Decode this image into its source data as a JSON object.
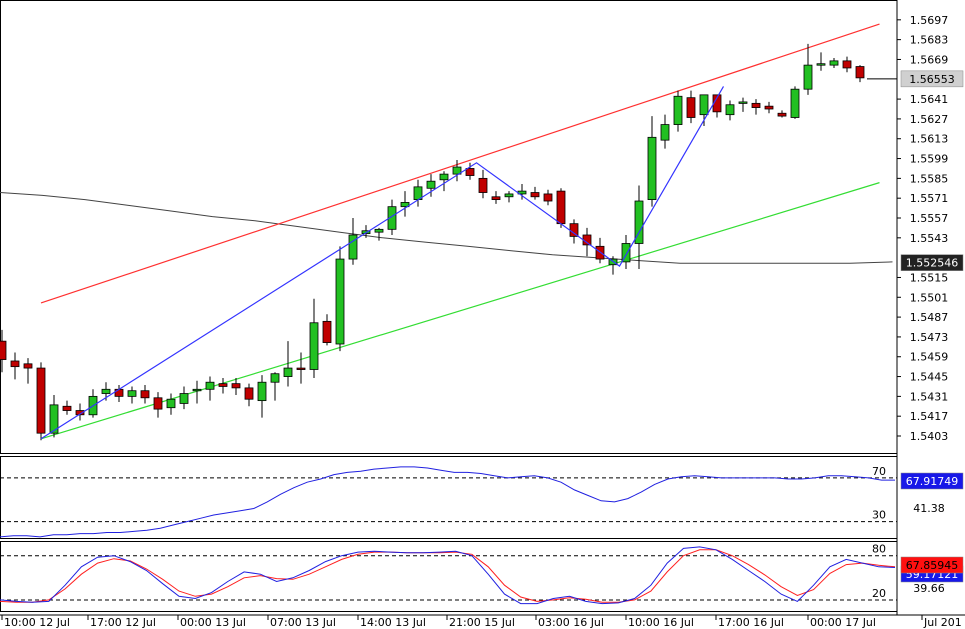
{
  "chart_data": {
    "type": "candlestick",
    "main": {
      "price_ticks": [
        "1.5697",
        "1.5683",
        "1.5669",
        "1.5641",
        "1.5627",
        "1.5613",
        "1.5599",
        "1.5585",
        "1.5571",
        "1.5557",
        "1.5543",
        "1.5515",
        "1.5501",
        "1.5487",
        "1.5473",
        "1.5459",
        "1.5445",
        "1.5431",
        "1.5417",
        "1.5403"
      ],
      "ylim": [
        1.5391,
        1.5711
      ],
      "current_price_label": "1.56553",
      "current_price": 1.56553,
      "ma_label": "1.552546",
      "ma_value": 1.552546,
      "candles": [
        {
          "o": 1.547,
          "h": 1.5478,
          "l": 1.5448,
          "c": 1.5457
        },
        {
          "o": 1.5456,
          "h": 1.5462,
          "l": 1.5443,
          "c": 1.5452
        },
        {
          "o": 1.5454,
          "h": 1.5458,
          "l": 1.544,
          "c": 1.5451
        },
        {
          "o": 1.5451,
          "h": 1.5455,
          "l": 1.54,
          "c": 1.5405
        },
        {
          "o": 1.5405,
          "h": 1.5432,
          "l": 1.5402,
          "c": 1.5425
        },
        {
          "o": 1.5424,
          "h": 1.5428,
          "l": 1.5418,
          "c": 1.5421
        },
        {
          "o": 1.5421,
          "h": 1.5426,
          "l": 1.5414,
          "c": 1.5418
        },
        {
          "o": 1.5418,
          "h": 1.5436,
          "l": 1.5416,
          "c": 1.5431
        },
        {
          "o": 1.5433,
          "h": 1.5441,
          "l": 1.5428,
          "c": 1.5436
        },
        {
          "o": 1.5436,
          "h": 1.5439,
          "l": 1.5427,
          "c": 1.5431
        },
        {
          "o": 1.5431,
          "h": 1.5438,
          "l": 1.5426,
          "c": 1.5435
        },
        {
          "o": 1.5435,
          "h": 1.5439,
          "l": 1.5426,
          "c": 1.543
        },
        {
          "o": 1.543,
          "h": 1.5434,
          "l": 1.5416,
          "c": 1.5422
        },
        {
          "o": 1.5423,
          "h": 1.5433,
          "l": 1.5418,
          "c": 1.5429
        },
        {
          "o": 1.5426,
          "h": 1.5438,
          "l": 1.5422,
          "c": 1.5433
        },
        {
          "o": 1.5435,
          "h": 1.5442,
          "l": 1.5426,
          "c": 1.5436
        },
        {
          "o": 1.5436,
          "h": 1.5445,
          "l": 1.5428,
          "c": 1.5441
        },
        {
          "o": 1.544,
          "h": 1.5444,
          "l": 1.5433,
          "c": 1.5438
        },
        {
          "o": 1.544,
          "h": 1.5444,
          "l": 1.5432,
          "c": 1.5437
        },
        {
          "o": 1.5437,
          "h": 1.544,
          "l": 1.5424,
          "c": 1.5429
        },
        {
          "o": 1.5428,
          "h": 1.5446,
          "l": 1.5416,
          "c": 1.5441
        },
        {
          "o": 1.5441,
          "h": 1.5448,
          "l": 1.5428,
          "c": 1.5447
        },
        {
          "o": 1.5445,
          "h": 1.547,
          "l": 1.5438,
          "c": 1.5451
        },
        {
          "o": 1.5451,
          "h": 1.5462,
          "l": 1.544,
          "c": 1.545
        },
        {
          "o": 1.545,
          "h": 1.55,
          "l": 1.5444,
          "c": 1.5483
        },
        {
          "o": 1.5484,
          "h": 1.5489,
          "l": 1.5467,
          "c": 1.5469
        },
        {
          "o": 1.5468,
          "h": 1.5537,
          "l": 1.5463,
          "c": 1.5528
        },
        {
          "o": 1.5528,
          "h": 1.5557,
          "l": 1.5524,
          "c": 1.5545
        },
        {
          "o": 1.5546,
          "h": 1.5552,
          "l": 1.5543,
          "c": 1.5548
        },
        {
          "o": 1.5547,
          "h": 1.555,
          "l": 1.5541,
          "c": 1.5549
        },
        {
          "o": 1.5549,
          "h": 1.557,
          "l": 1.5545,
          "c": 1.5565
        },
        {
          "o": 1.5565,
          "h": 1.5576,
          "l": 1.5558,
          "c": 1.5568
        },
        {
          "o": 1.557,
          "h": 1.5584,
          "l": 1.5565,
          "c": 1.5579
        },
        {
          "o": 1.5578,
          "h": 1.5588,
          "l": 1.5572,
          "c": 1.5583
        },
        {
          "o": 1.5584,
          "h": 1.559,
          "l": 1.5576,
          "c": 1.5588
        },
        {
          "o": 1.5588,
          "h": 1.5598,
          "l": 1.5583,
          "c": 1.5593
        },
        {
          "o": 1.5592,
          "h": 1.5596,
          "l": 1.5584,
          "c": 1.5587
        },
        {
          "o": 1.5585,
          "h": 1.5591,
          "l": 1.5571,
          "c": 1.5575
        },
        {
          "o": 1.5572,
          "h": 1.5576,
          "l": 1.5567,
          "c": 1.557
        },
        {
          "o": 1.5572,
          "h": 1.5576,
          "l": 1.5568,
          "c": 1.5574
        },
        {
          "o": 1.5574,
          "h": 1.5581,
          "l": 1.557,
          "c": 1.5576
        },
        {
          "o": 1.5575,
          "h": 1.5579,
          "l": 1.557,
          "c": 1.5572
        },
        {
          "o": 1.5574,
          "h": 1.5577,
          "l": 1.5566,
          "c": 1.5569
        },
        {
          "o": 1.5576,
          "h": 1.5578,
          "l": 1.555,
          "c": 1.5553
        },
        {
          "o": 1.5553,
          "h": 1.5556,
          "l": 1.5539,
          "c": 1.5544
        },
        {
          "o": 1.5545,
          "h": 1.555,
          "l": 1.553,
          "c": 1.5538
        },
        {
          "o": 1.5537,
          "h": 1.5543,
          "l": 1.5525,
          "c": 1.5528
        },
        {
          "o": 1.5524,
          "h": 1.553,
          "l": 1.5517,
          "c": 1.5528
        },
        {
          "o": 1.5526,
          "h": 1.5545,
          "l": 1.5521,
          "c": 1.5539
        },
        {
          "o": 1.5539,
          "h": 1.558,
          "l": 1.5521,
          "c": 1.5569
        },
        {
          "o": 1.557,
          "h": 1.5629,
          "l": 1.5565,
          "c": 1.5614
        },
        {
          "o": 1.5612,
          "h": 1.563,
          "l": 1.5606,
          "c": 1.5623
        },
        {
          "o": 1.5623,
          "h": 1.5647,
          "l": 1.5618,
          "c": 1.5643
        },
        {
          "o": 1.5642,
          "h": 1.5647,
          "l": 1.5624,
          "c": 1.5628
        },
        {
          "o": 1.563,
          "h": 1.5644,
          "l": 1.5622,
          "c": 1.5644
        },
        {
          "o": 1.5644,
          "h": 1.5644,
          "l": 1.5628,
          "c": 1.5632
        },
        {
          "o": 1.563,
          "h": 1.564,
          "l": 1.5626,
          "c": 1.5637
        },
        {
          "o": 1.5639,
          "h": 1.5642,
          "l": 1.5632,
          "c": 1.5639
        },
        {
          "o": 1.5638,
          "h": 1.5641,
          "l": 1.563,
          "c": 1.5635
        },
        {
          "o": 1.5636,
          "h": 1.5639,
          "l": 1.5631,
          "c": 1.5634
        },
        {
          "o": 1.5631,
          "h": 1.5633,
          "l": 1.5628,
          "c": 1.5629
        },
        {
          "o": 1.5628,
          "h": 1.565,
          "l": 1.5627,
          "c": 1.5648
        },
        {
          "o": 1.5648,
          "h": 1.568,
          "l": 1.5644,
          "c": 1.5665
        },
        {
          "o": 1.5666,
          "h": 1.5674,
          "l": 1.5661,
          "c": 1.5666
        },
        {
          "o": 1.5665,
          "h": 1.567,
          "l": 1.5663,
          "c": 1.5668
        },
        {
          "o": 1.5668,
          "h": 1.5671,
          "l": 1.566,
          "c": 1.5663
        },
        {
          "o": 1.5664,
          "h": 1.5665,
          "l": 1.5653,
          "c": 1.5656
        }
      ],
      "ma_series": [
        1.5575,
        1.5573,
        1.557,
        1.5566,
        1.5562,
        1.5558,
        1.5555,
        1.5551,
        1.5547,
        1.5543,
        1.554,
        1.5537,
        1.5534,
        1.5531,
        1.5529,
        1.5527,
        1.5525,
        1.5525,
        1.5525,
        1.5525,
        1.5525,
        1.5526
      ],
      "red_channel": {
        "x0": 3.0,
        "y0": 1.5497,
        "x1": 67.5,
        "y1": 1.5694
      },
      "green_channel": {
        "x0": 3.0,
        "y0": 1.5401,
        "x1": 67.5,
        "y1": 1.5582
      },
      "blue_zigzag": [
        [
          3.0,
          1.5401
        ],
        [
          36.5,
          1.5596
        ],
        [
          47.5,
          1.5523
        ],
        [
          55.5,
          1.565
        ]
      ]
    },
    "rsi": {
      "levels": [
        "70",
        "30"
      ],
      "mid_label": "41.38",
      "value_label": "67.91749",
      "ylim": [
        15,
        90
      ],
      "series": [
        16,
        17,
        17,
        16,
        18,
        18,
        19,
        19,
        20,
        20,
        21,
        22,
        24,
        27,
        30,
        33,
        36,
        38,
        40,
        42,
        48,
        55,
        61,
        66,
        69,
        73,
        75,
        76,
        78,
        79,
        80,
        80,
        79,
        77,
        75,
        75,
        74,
        72,
        70,
        71,
        72,
        70,
        66,
        59,
        54,
        49,
        48,
        51,
        57,
        64,
        69,
        71,
        72,
        71,
        70,
        70,
        70,
        70,
        70,
        69,
        69,
        70,
        72,
        72,
        71,
        70,
        68,
        68
      ]
    },
    "stoch": {
      "levels": [
        "80",
        "20"
      ],
      "mid_label": "39.66",
      "value_label": "67.85945",
      "value2_label": "59.17121",
      "ylim": [
        5,
        100
      ],
      "main_series": [
        20,
        18,
        17,
        18,
        40,
        65,
        78,
        80,
        72,
        60,
        42,
        25,
        22,
        30,
        45,
        58,
        55,
        45,
        50,
        60,
        72,
        80,
        85,
        86,
        85,
        84,
        84,
        85,
        86,
        80,
        55,
        28,
        15,
        15,
        22,
        25,
        18,
        15,
        16,
        22,
        40,
        70,
        90,
        92,
        88,
        75,
        60,
        45,
        28,
        18,
        40,
        65,
        75,
        70,
        65,
        64
      ],
      "signal_series": [
        18,
        17,
        17,
        20,
        35,
        55,
        70,
        76,
        73,
        62,
        48,
        32,
        25,
        28,
        38,
        50,
        53,
        49,
        48,
        55,
        65,
        75,
        82,
        85,
        85,
        84,
        84,
        84,
        85,
        82,
        65,
        40,
        24,
        18,
        20,
        23,
        21,
        17,
        17,
        20,
        32,
        58,
        80,
        88,
        88,
        80,
        68,
        54,
        38,
        26,
        34,
        56,
        68,
        70,
        67,
        65
      ]
    },
    "time_labels": [
      "10:00 12 Jul",
      "17:00 12 Jul",
      "00:00 13 Jul",
      "07:00 13 Jul",
      "14:00 13 Jul",
      "21:00 15 Jul",
      "03:00 16 Jul",
      "10:00 16 Jul",
      "17:00 16 Jul",
      "00:00 17 Jul",
      "Jul 201"
    ],
    "colors": {
      "bull": "#22c022",
      "bear": "#c00000",
      "channel_upper": "#ff3030",
      "channel_lower": "#33dd33",
      "zigzag": "#3333ff",
      "ma": "#444444",
      "rsi_line": "#2020e0",
      "stoch_main": "#2020e0",
      "stoch_signal": "#ff2020",
      "tag_blue": "#1818e8",
      "tag_red": "#ff1010",
      "tag_price": "#d0d0d0",
      "tag_ma": "#222222"
    }
  }
}
